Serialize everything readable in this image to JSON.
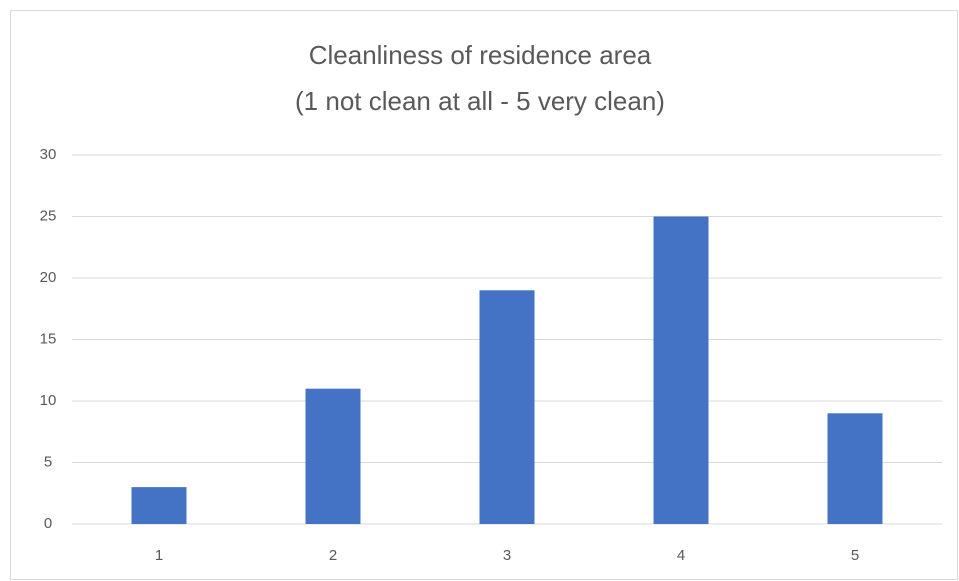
{
  "chart_data": {
    "type": "bar",
    "title": [
      "Cleanliness of residence area",
      "(1 not clean at all - 5 very clean)"
    ],
    "categories": [
      "1",
      "2",
      "3",
      "4",
      "5"
    ],
    "values": [
      3,
      11,
      19,
      25,
      9
    ],
    "color": "#4472c4",
    "ylim": [
      0,
      30
    ],
    "yticks": [
      0,
      5,
      10,
      15,
      20,
      25,
      30
    ],
    "grid": true
  }
}
